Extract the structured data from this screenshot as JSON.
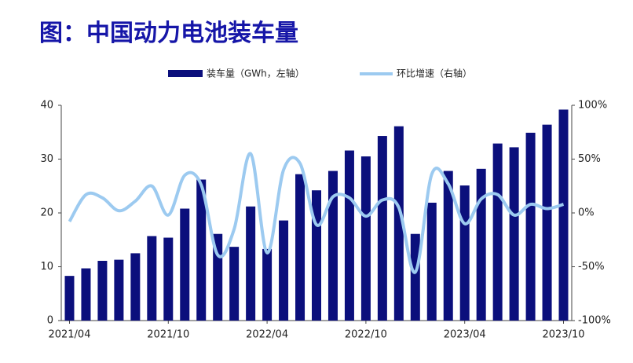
{
  "chart_data": {
    "type": "bar_line",
    "title": "图：中国动力电池装车量",
    "categories": [
      "2021/04",
      null,
      null,
      null,
      null,
      null,
      "2021/10",
      null,
      null,
      null,
      null,
      null,
      "2022/04",
      null,
      null,
      null,
      null,
      null,
      "2022/10",
      null,
      null,
      null,
      null,
      null,
      "2023/04",
      null,
      null,
      null,
      null,
      null,
      "2023/10"
    ],
    "series": [
      {
        "name": "装车量（GWh，左轴）",
        "type": "bar",
        "color": "#0b0f7c",
        "axis": "y",
        "values": [
          8.3,
          9.7,
          11.1,
          11.3,
          12.5,
          15.7,
          15.4,
          20.8,
          26.2,
          16.1,
          13.7,
          21.2,
          13.3,
          18.6,
          27.2,
          24.2,
          27.8,
          31.6,
          30.5,
          34.3,
          36.1,
          16.1,
          21.9,
          27.8,
          25.1,
          28.2,
          32.9,
          32.2,
          34.9,
          36.4,
          39.2
        ]
      },
      {
        "name": "环比增速（右轴）",
        "type": "line",
        "color": "#9ccaf0",
        "axis": "y2",
        "values": [
          -8,
          17,
          14,
          2,
          11,
          25,
          -2,
          35,
          26,
          -39,
          -15,
          55,
          -37,
          40,
          46,
          -11,
          15,
          14,
          -3,
          12,
          5,
          -55,
          36,
          27,
          -10,
          13,
          17,
          -2,
          8,
          4,
          8
        ]
      }
    ],
    "ylim": [
      0,
      40
    ],
    "yticks": [
      0,
      10,
      20,
      30,
      40
    ],
    "y2lim": [
      -100,
      100
    ],
    "y2ticks": [
      {
        "value": -100,
        "label": "-100%"
      },
      {
        "value": -50,
        "label": "-50%"
      },
      {
        "value": 0,
        "label": "0%"
      },
      {
        "value": 50,
        "label": "50%"
      },
      {
        "value": 100,
        "label": "100%"
      }
    ]
  }
}
